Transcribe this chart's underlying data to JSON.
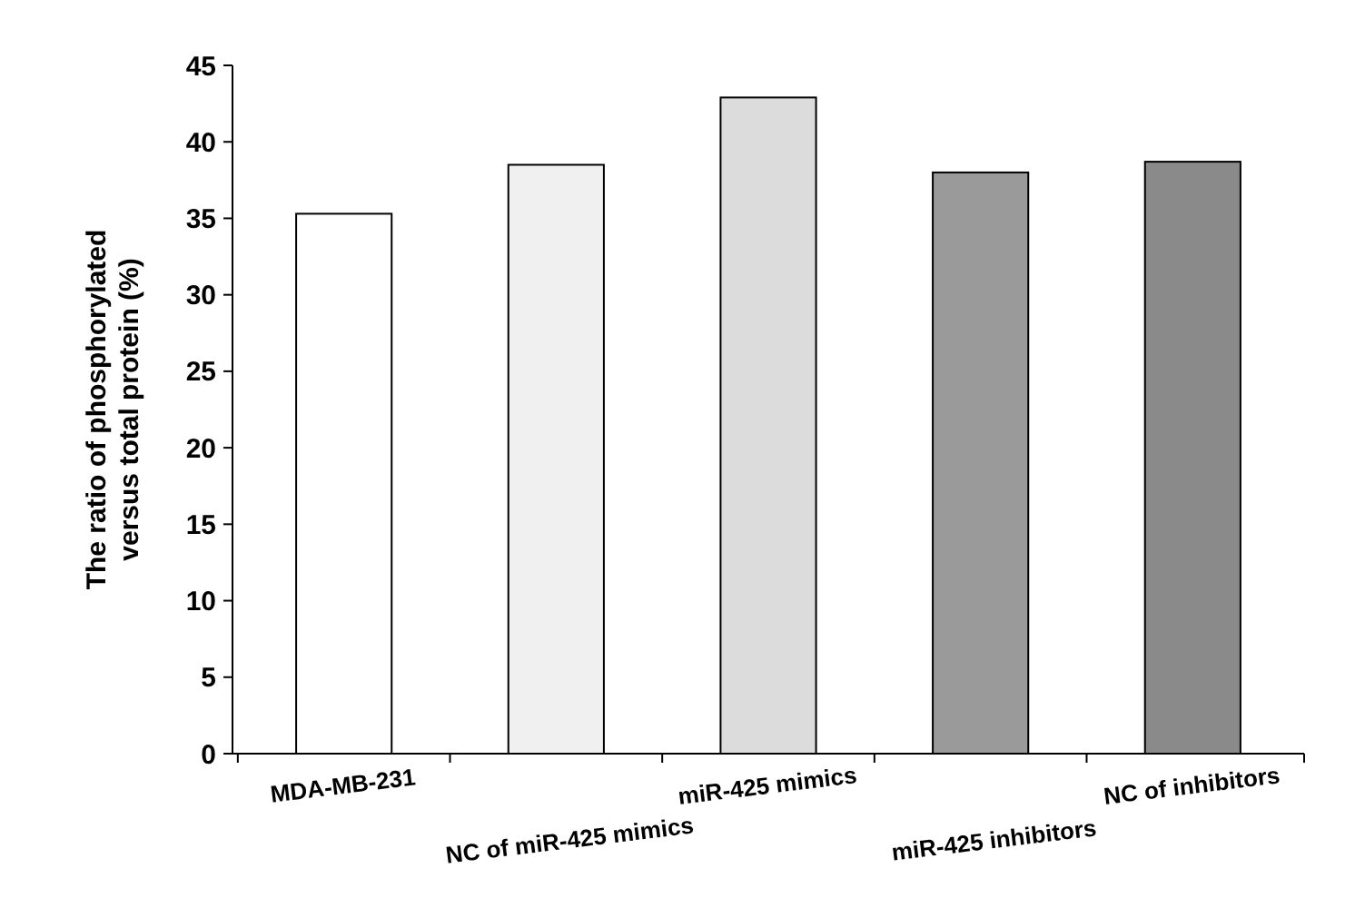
{
  "chart_data": {
    "type": "bar",
    "ylabel": "The ratio of phosphorylated\nversus total protein  (%)",
    "categories": [
      "MDA-MB-231",
      "NC of miR-425 mimics",
      "miR-425 mimics",
      "miR-425 inhibitors",
      "NC of inhibitors"
    ],
    "values": [
      35.3,
      38.5,
      42.9,
      38.0,
      38.7
    ],
    "colors": [
      "#ffffff",
      "#f0f0f0",
      "#dcdcdc",
      "#9a9a9a",
      "#8a8a8a"
    ],
    "ylim": [
      0,
      45
    ],
    "yticks": [
      0,
      5,
      10,
      15,
      20,
      25,
      30,
      35,
      40,
      45
    ],
    "grid": false
  }
}
